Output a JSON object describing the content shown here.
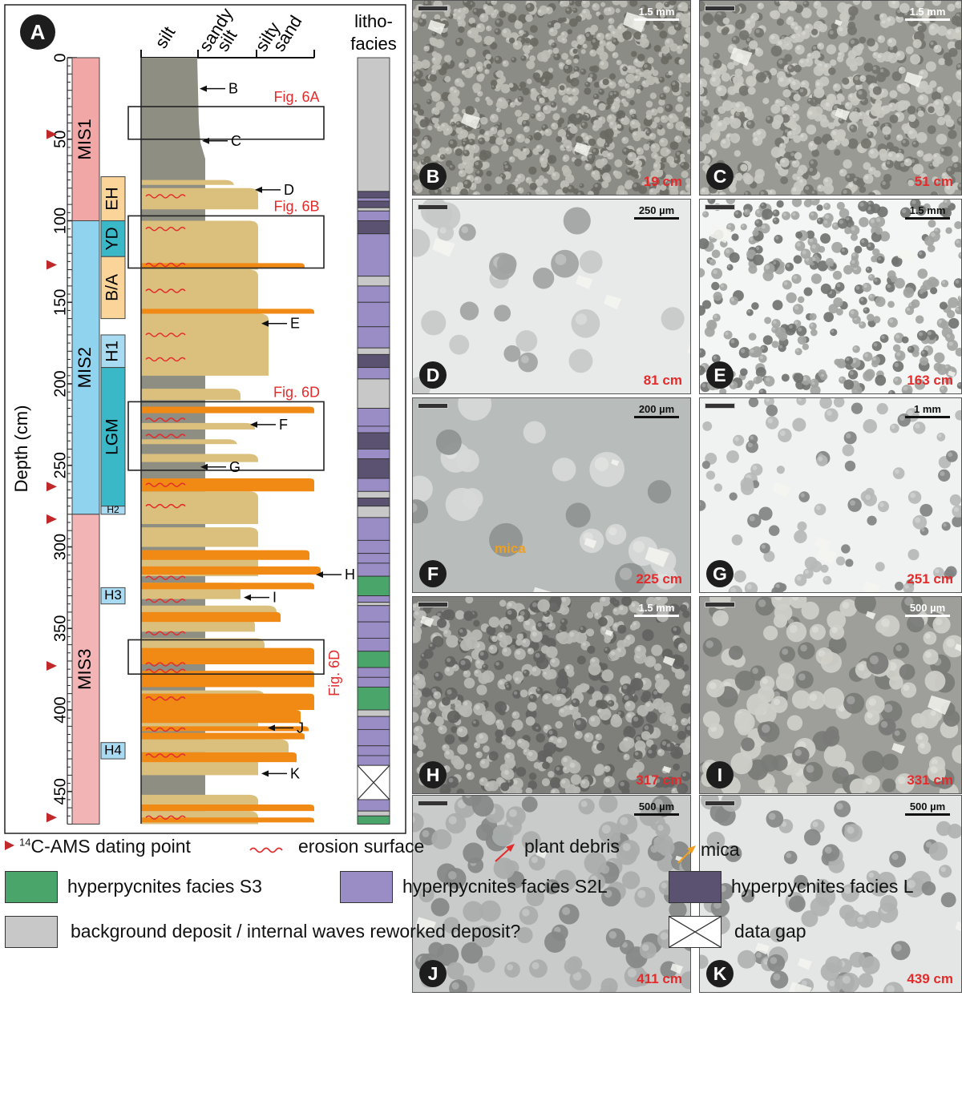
{
  "panel_a": {
    "badge": "A",
    "y_axis_title": "Depth (cm)",
    "y_ticks": [
      "0",
      "50",
      "100",
      "150",
      "200",
      "250",
      "300",
      "350",
      "400",
      "450"
    ],
    "grain_headers": {
      "silt": "silt",
      "sandy_line1": "sandy",
      "sandy_line2": "silt",
      "silty_line1": "silty",
      "silty_line2": "sand"
    },
    "lithofacies_header": {
      "line1": "litho-",
      "line2": "facies"
    },
    "mis_stages": [
      {
        "label": "MIS1",
        "top": 0,
        "bottom": 100,
        "color": "#f2a7a7"
      },
      {
        "label": "MIS2",
        "top": 100,
        "bottom": 280,
        "color": "#8fd3ef"
      },
      {
        "label": "MIS3",
        "top": 280,
        "bottom": 470,
        "color": "#f2b4b4"
      }
    ],
    "events": [
      {
        "label": "EH",
        "top": 73,
        "bottom": 100,
        "color": "#fbd49a",
        "rotate": true
      },
      {
        "label": "YD",
        "top": 100,
        "bottom": 122,
        "color": "#3ab8c8",
        "rotate": true
      },
      {
        "label": "B/A",
        "top": 122,
        "bottom": 160,
        "color": "#fbd49a",
        "rotate": true
      },
      {
        "label": "H1",
        "top": 170,
        "bottom": 190,
        "color": "#a8dbf2",
        "rotate": true
      },
      {
        "label": "LGM",
        "top": 190,
        "bottom": 275,
        "color": "#3ab8c8",
        "rotate": true
      },
      {
        "label": "H2",
        "top": 275,
        "bottom": 280,
        "color": "#a8dbf2",
        "rotate": false
      },
      {
        "label": "H3",
        "top": 325,
        "bottom": 335,
        "color": "#a8dbf2",
        "rotate": false
      },
      {
        "label": "H4",
        "top": 420,
        "bottom": 430,
        "color": "#a8dbf2",
        "rotate": false
      }
    ],
    "dating_points_cm": [
      47,
      127,
      263,
      283,
      373,
      466
    ],
    "fig_boxes": [
      {
        "label": "Fig. 6A",
        "top": 30,
        "bottom": 50
      },
      {
        "label": "Fig. 6B",
        "top": 97,
        "bottom": 129
      },
      {
        "label": "Fig. 6D",
        "top": 211,
        "bottom": 253
      },
      {
        "label": "Fig. 6D",
        "top": 357,
        "bottom": 378,
        "vertical": true
      }
    ],
    "sample_arrows": [
      {
        "label": "B",
        "depth": 19
      },
      {
        "label": "C",
        "depth": 51
      },
      {
        "label": "D",
        "depth": 81
      },
      {
        "label": "E",
        "depth": 163
      },
      {
        "label": "F",
        "depth": 225
      },
      {
        "label": "G",
        "depth": 251
      },
      {
        "label": "H",
        "depth": 317
      },
      {
        "label": "I",
        "depth": 331
      },
      {
        "label": "J",
        "depth": 411
      },
      {
        "label": "K",
        "depth": 439
      }
    ]
  },
  "photos": [
    {
      "letter": "B",
      "depth": "19 cm",
      "scale": "1.5 mm"
    },
    {
      "letter": "C",
      "depth": "51 cm",
      "scale": "1.5 mm"
    },
    {
      "letter": "D",
      "depth": "81 cm",
      "scale": "250 µm"
    },
    {
      "letter": "E",
      "depth": "163 cm",
      "scale": "1.5 mm"
    },
    {
      "letter": "F",
      "depth": "225 cm",
      "scale": "200 µm",
      "note": "mica"
    },
    {
      "letter": "G",
      "depth": "251 cm",
      "scale": "1 mm"
    },
    {
      "letter": "H",
      "depth": "317 cm",
      "scale": "1.5 mm"
    },
    {
      "letter": "I",
      "depth": "331 cm",
      "scale": "500 µm"
    },
    {
      "letter": "J",
      "depth": "411 cm",
      "scale": "500 µm"
    },
    {
      "letter": "K",
      "depth": "439 cm",
      "scale": "500 µm"
    }
  ],
  "legend": {
    "dating": "C-AMS dating point",
    "dating_sup": "14",
    "erosion": "erosion surface",
    "plant": "plant debris",
    "mica": "mica",
    "s3": "hyperpycnites facies S3",
    "s2l": "hyperpycnites facies S2L",
    "l": "hyperpycnites facies L",
    "background": "background deposit / internal waves reworked deposit?",
    "gap": "data gap"
  },
  "colors": {
    "silt": "#8e8e83",
    "sandy_silt": "#dbbf7c",
    "silty_sand": "#f08a14",
    "s3": "#4aa56b",
    "s2l": "#9a8dc6",
    "l": "#5a5270",
    "background": "#c8c8c8",
    "red": "#e32b2b",
    "orange": "#f0a020"
  }
}
